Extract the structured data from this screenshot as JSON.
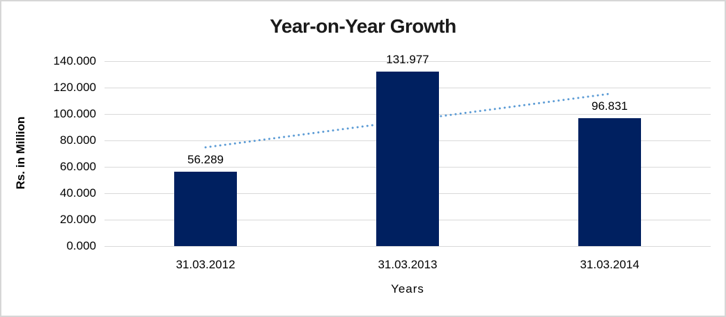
{
  "frame": {
    "background_color": "#ffffff",
    "border_color": "#d6d6d6"
  },
  "chart_data": {
    "type": "bar",
    "title": "Year-on-Year Growth",
    "xlabel": "Years",
    "ylabel": "Rs. in Million",
    "categories": [
      "31.03.2012",
      "31.03.2013",
      "31.03.2014"
    ],
    "values": [
      56.289,
      131.977,
      96.831
    ],
    "data_labels": [
      "56.289",
      "131.977",
      "96.831"
    ],
    "ylim": [
      0,
      140
    ],
    "ytick_step": 20,
    "ytick_labels": [
      "0.000",
      "20.000",
      "40.000",
      "60.000",
      "80.000",
      "100.000",
      "120.000",
      "140.000"
    ],
    "grid": true,
    "legend": "none",
    "bar_color": "#002060",
    "gridline_color": "#d9d9d9",
    "label_color": "#000000",
    "trendline": {
      "type": "linear",
      "style": "dotted",
      "color": "#5b9bd5",
      "start_value": 74.761,
      "end_value": 115.303
    }
  }
}
